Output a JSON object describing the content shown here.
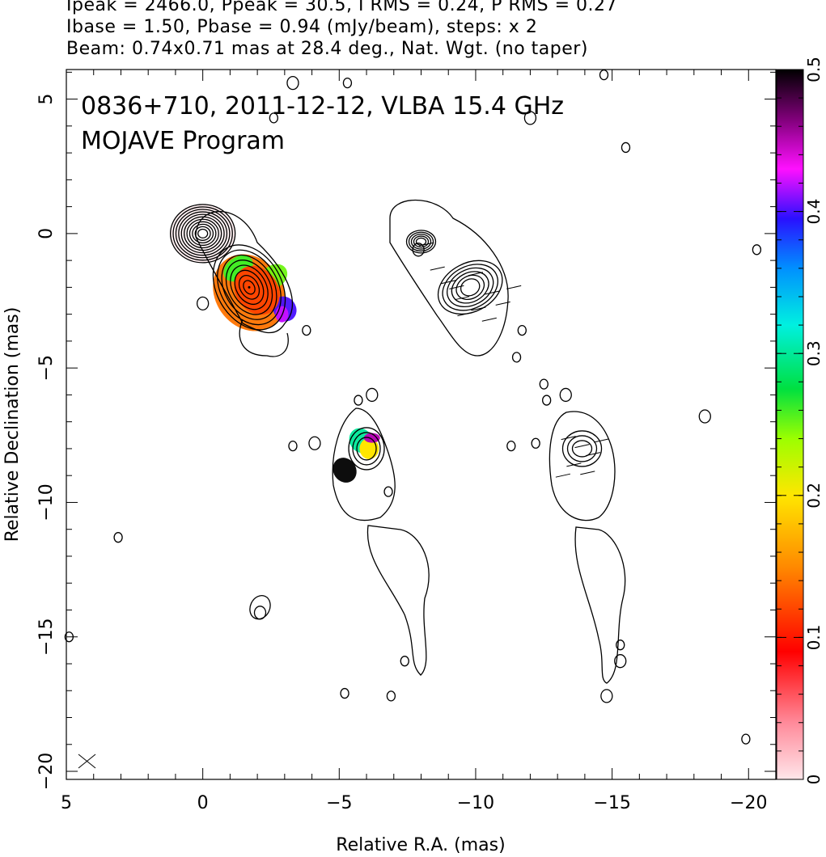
{
  "header": {
    "line1": "Ipeak = 2466.0, Ppeak = 30.5, I RMS = 0.24, P RMS = 0.27",
    "line2": "Ibase = 1.50, Pbase = 0.94 (mJy/beam), steps: x 2",
    "line3": "Beam: 0.74x0.71 mas at 28.4 deg., Nat. Wgt. (no taper)"
  },
  "panel": {
    "line1": "0836+710, 2011-12-12, VLBA 15.4 GHz",
    "line2": "MOJAVE Program"
  },
  "chart_data": {
    "type": "heatmap",
    "xlabel": "Relative R.A. (mas)",
    "ylabel": "Relative Declination (mas)",
    "xlim": [
      5,
      -21
    ],
    "ylim": [
      -20.3,
      6.1
    ],
    "x_ticks": [
      5,
      0,
      -5,
      -10,
      -15,
      -20
    ],
    "y_ticks": [
      5,
      0,
      -5,
      -10,
      -15,
      -20
    ],
    "x_tick_labels": [
      "5",
      "0",
      "−5",
      "−10",
      "−15",
      "−20"
    ],
    "y_tick_labels": [
      "5",
      "0",
      "−5",
      "−10",
      "−15",
      "−20"
    ],
    "colorbar": {
      "range": [
        0,
        0.5
      ],
      "ticks": [
        0,
        0.1,
        0.2,
        0.3,
        0.4,
        0.5
      ],
      "tick_labels": [
        "0",
        "0.1",
        "0.2",
        "0.3",
        "0.4",
        "0.5"
      ]
    },
    "stokes_I_components": [
      {
        "x": 0.0,
        "y": 0.0,
        "levels": 11
      },
      {
        "x": -1.7,
        "y": -2.0,
        "levels": 8
      },
      {
        "x": -6.0,
        "y": -8.0,
        "levels": 3
      },
      {
        "x": -5.1,
        "y": -8.8,
        "levels": 2
      }
    ],
    "fractional_polarization_patches": [
      {
        "x": -1.7,
        "y": -2.2,
        "value": 0.14
      },
      {
        "x": -2.6,
        "y": -1.6,
        "value": 0.25
      },
      {
        "x": -3.0,
        "y": -2.8,
        "value": 0.4
      },
      {
        "x": -5.8,
        "y": -7.7,
        "value": 0.3
      },
      {
        "x": -5.2,
        "y": -8.8,
        "value": 0.5
      }
    ]
  }
}
